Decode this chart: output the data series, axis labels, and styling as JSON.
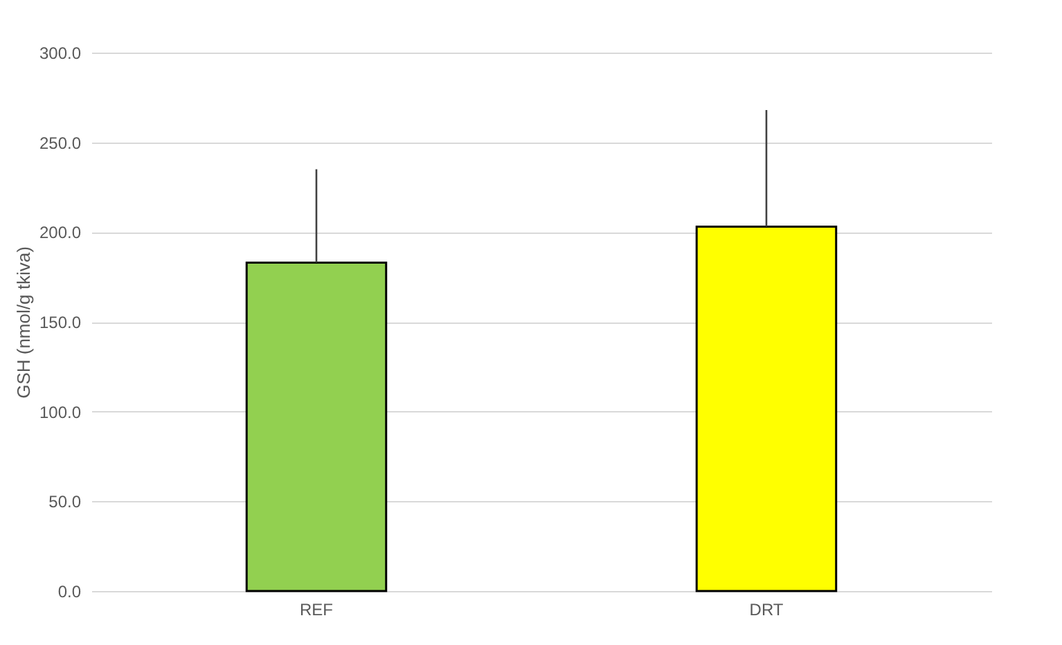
{
  "chart_data": {
    "type": "bar",
    "ylabel": "GSH (nmol/g tkiva)",
    "categories": [
      "REF",
      "DRT"
    ],
    "values": [
      183,
      203
    ],
    "colors": [
      "#92d050",
      "#ffff00"
    ],
    "errors": [
      [
        183,
        235
      ],
      [
        203,
        268
      ]
    ],
    "ylim": [
      0,
      300
    ],
    "yticks": [
      {
        "value": 0,
        "label": "0.0"
      },
      {
        "value": 50,
        "label": "50.0"
      },
      {
        "value": 100,
        "label": "100.0"
      },
      {
        "value": 150,
        "label": "150.0"
      },
      {
        "value": 200,
        "label": "200.0"
      },
      {
        "value": 250,
        "label": "250.0"
      },
      {
        "value": 300,
        "label": "300.0"
      }
    ],
    "grid": "y"
  }
}
